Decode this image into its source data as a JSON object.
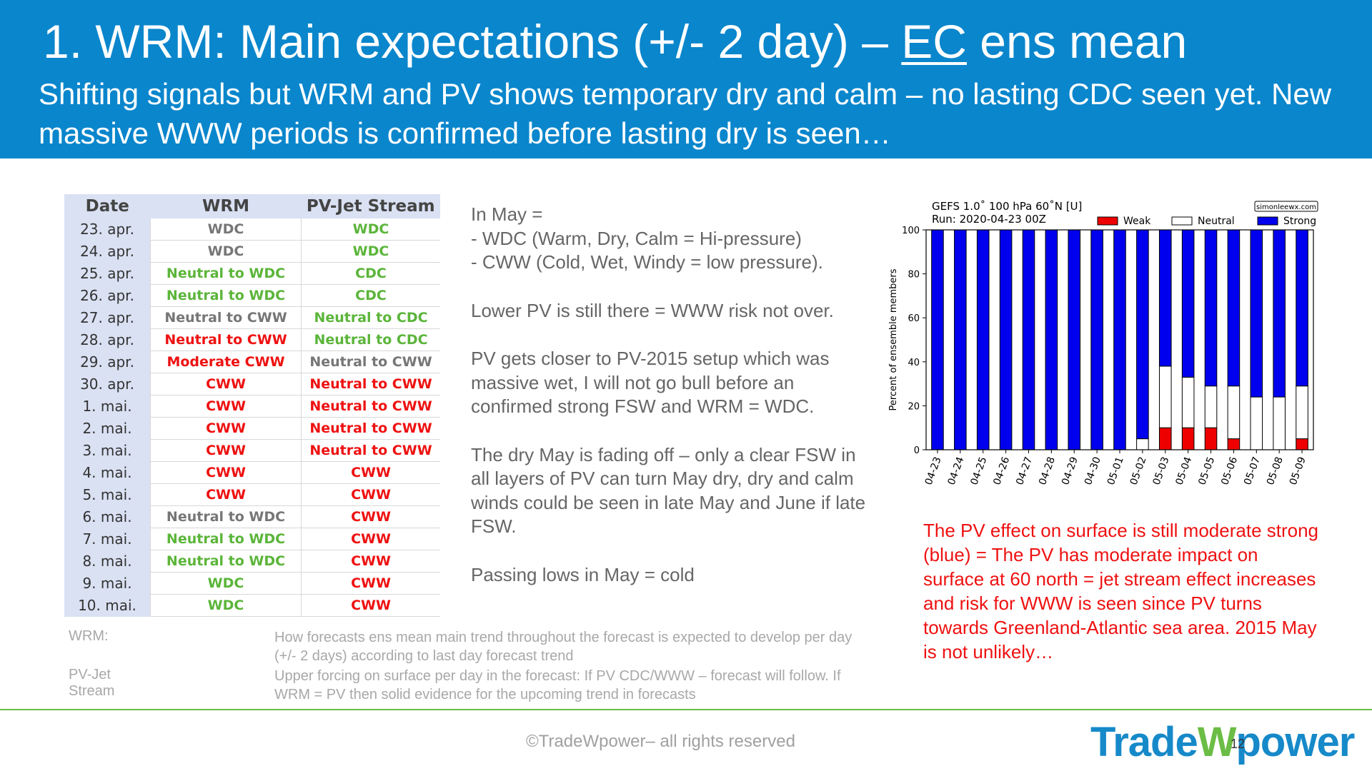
{
  "header": {
    "title_pre": "1. WRM: Main expectations (+/- 2 day) – ",
    "title_ul": "EC",
    "title_post": " ens mean",
    "subtitle": "Shifting signals but WRM and PV shows temporary dry and calm – no lasting CDC seen yet. New massive WWW periods is confirmed before lasting dry is seen…"
  },
  "table": {
    "headers": [
      "Date",
      "WRM",
      "PV-Jet Stream"
    ],
    "colors": {
      "gray": "#767676",
      "green": "#5bb53a",
      "red": "#ee1111"
    },
    "rows": [
      {
        "date": "23. apr.",
        "wrm": "WDC",
        "wrm_color": "gray",
        "pv": "WDC",
        "pv_color": "green"
      },
      {
        "date": "24. apr.",
        "wrm": "WDC",
        "wrm_color": "gray",
        "pv": "WDC",
        "pv_color": "green"
      },
      {
        "date": "25. apr.",
        "wrm": "Neutral to WDC",
        "wrm_color": "green",
        "pv": "CDC",
        "pv_color": "green"
      },
      {
        "date": "26. apr.",
        "wrm": "Neutral to WDC",
        "wrm_color": "green",
        "pv": "CDC",
        "pv_color": "green"
      },
      {
        "date": "27. apr.",
        "wrm": "Neutral to CWW",
        "wrm_color": "gray",
        "pv": "Neutral to CDC",
        "pv_color": "green"
      },
      {
        "date": "28. apr.",
        "wrm": "Neutral to CWW",
        "wrm_color": "red",
        "pv": "Neutral to CDC",
        "pv_color": "green"
      },
      {
        "date": "29. apr.",
        "wrm": "Moderate CWW",
        "wrm_color": "red",
        "pv": "Neutral to CWW",
        "pv_color": "gray"
      },
      {
        "date": "30. apr.",
        "wrm": "CWW",
        "wrm_color": "red",
        "pv": "Neutral to CWW",
        "pv_color": "red"
      },
      {
        "date": "1. mai.",
        "wrm": "CWW",
        "wrm_color": "red",
        "pv": "Neutral to CWW",
        "pv_color": "red"
      },
      {
        "date": "2. mai.",
        "wrm": "CWW",
        "wrm_color": "red",
        "pv": "Neutral to CWW",
        "pv_color": "red"
      },
      {
        "date": "3. mai.",
        "wrm": "CWW",
        "wrm_color": "red",
        "pv": "Neutral to CWW",
        "pv_color": "red"
      },
      {
        "date": "4. mai.",
        "wrm": "CWW",
        "wrm_color": "red",
        "pv": "CWW",
        "pv_color": "red"
      },
      {
        "date": "5. mai.",
        "wrm": "CWW",
        "wrm_color": "red",
        "pv": "CWW",
        "pv_color": "red"
      },
      {
        "date": "6. mai.",
        "wrm": "Neutral to WDC",
        "wrm_color": "gray",
        "pv": "CWW",
        "pv_color": "red"
      },
      {
        "date": "7. mai.",
        "wrm": "Neutral to WDC",
        "wrm_color": "green",
        "pv": "CWW",
        "pv_color": "red"
      },
      {
        "date": "8. mai.",
        "wrm": "Neutral to WDC",
        "wrm_color": "green",
        "pv": "CWW",
        "pv_color": "red"
      },
      {
        "date": "9. mai.",
        "wrm": "WDC",
        "wrm_color": "green",
        "pv": "CWW",
        "pv_color": "red"
      },
      {
        "date": "10. mai.",
        "wrm": "WDC",
        "wrm_color": "green",
        "pv": "CWW",
        "pv_color": "red"
      }
    ]
  },
  "notes": [
    "In May =\n- WDC (Warm, Dry, Calm = Hi-pressure)\n- CWW (Cold, Wet, Windy = low pressure).",
    "Lower PV is still there = WWW risk not over.",
    "PV gets closer to PV-2015 setup which was massive wet, I will not go bull before an confirmed strong FSW and WRM = WDC.",
    "The dry May is fading off – only a clear FSW in all layers of PV can turn May dry, dry and calm winds could be seen in late May and June if late FSW.",
    "Passing lows in May = cold"
  ],
  "definitions": [
    {
      "label": "WRM:",
      "text": "How forecasts ens mean main trend throughout the forecast is expected to develop per day (+/- 2 days) according to last day forecast trend"
    },
    {
      "label": "PV-Jet Stream",
      "text": "Upper forcing on surface per day in the forecast: If PV CDC/WWW – forecast will follow. If WRM = PV then solid evidence for the upcoming trend in forecasts"
    }
  ],
  "chart_data": {
    "type": "bar",
    "stacked": true,
    "title": "GEFS 1.0˚ 100 hPa 60˚N [U]",
    "subtitle": "Run: 2020-04-23 00Z",
    "watermark": "simonleewx.com",
    "ylabel": "Percent of ensemble members",
    "ylim": [
      0,
      100
    ],
    "yticks": [
      0,
      20,
      40,
      60,
      80,
      100
    ],
    "legend_position": "top",
    "categories": [
      "04-23",
      "04-24",
      "04-25",
      "04-26",
      "04-27",
      "04-28",
      "04-29",
      "04-30",
      "05-01",
      "05-02",
      "05-03",
      "05-04",
      "05-05",
      "05-06",
      "05-07",
      "05-08",
      "05-09"
    ],
    "series": [
      {
        "name": "Weak",
        "color": "#ee0000",
        "values": [
          0,
          0,
          0,
          0,
          0,
          0,
          0,
          0,
          0,
          0,
          10,
          10,
          10,
          5,
          0,
          0,
          5
        ]
      },
      {
        "name": "Neutral",
        "color": "#ffffff",
        "values": [
          0,
          0,
          0,
          0,
          0,
          0,
          0,
          0,
          0,
          5,
          28,
          23,
          19,
          24,
          24,
          24,
          24
        ]
      },
      {
        "name": "Strong",
        "color": "#0000ee",
        "values": [
          100,
          100,
          100,
          100,
          100,
          100,
          100,
          100,
          100,
          95,
          62,
          67,
          71,
          71,
          76,
          76,
          71
        ]
      }
    ]
  },
  "red_note": "The PV effect on surface is still moderate strong (blue) = The PV has moderate impact on surface at 60 north = jet stream effect increases and risk for WWW is seen since PV turns towards Greenland-Atlantic sea area. 2015 May is not unlikely…",
  "footer": {
    "copyright": "©TradeWpower– all rights reserved",
    "logo_a": "Trade",
    "logo_w": "W",
    "logo_b": "power",
    "page_number": "12"
  }
}
